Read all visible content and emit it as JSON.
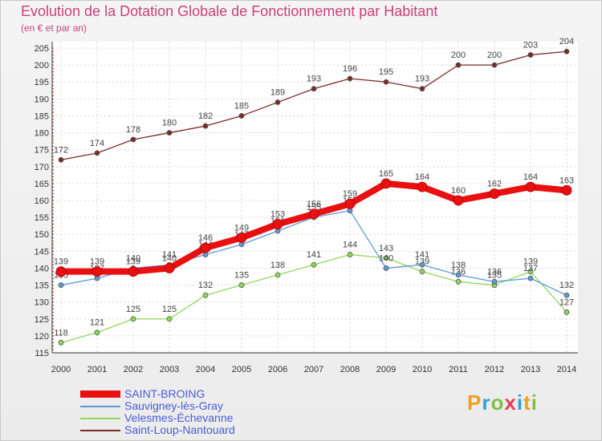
{
  "title": "Evolution de la Dotation Globale de Fonctionnement par Habitant",
  "subtitle": "(en € et par an)",
  "brand": {
    "letters": [
      "P",
      "r",
      "o",
      "x",
      "i",
      "t",
      "i"
    ],
    "colors": [
      "#f0a020",
      "#2ba3dc",
      "#7cc242",
      "#e83b56",
      "#2ba3dc",
      "#f0a020",
      "#7cc242"
    ]
  },
  "chart_data": {
    "type": "line",
    "title": "Evolution de la Dotation Globale de Fonctionnement par Habitant",
    "ylabel": "(en € et par an)",
    "x": [
      "2000",
      "2001",
      "2002",
      "2003",
      "2004",
      "2005",
      "2006",
      "2007",
      "2008",
      "2009",
      "2010",
      "2011",
      "2012",
      "2013",
      "2014"
    ],
    "ylim": [
      115,
      205
    ],
    "yticks": [
      "115",
      "120",
      "125",
      "130",
      "135",
      "140",
      "145",
      "150",
      "155",
      "160",
      "165",
      "170",
      "175",
      "180",
      "185",
      "190",
      "195",
      "200",
      "205"
    ],
    "grid": true,
    "legend": "bottom-left",
    "series": [
      {
        "name": "SAINT-BROING",
        "color": "#e81010",
        "width": "thick",
        "values": [
          139,
          139,
          139,
          140,
          146,
          149,
          153,
          156,
          159,
          165,
          164,
          160,
          162,
          164,
          163
        ],
        "labels": [
          "139",
          "139",
          "139",
          "140",
          "146",
          "149",
          "153",
          "156",
          "159",
          "165",
          "164",
          "160",
          "162",
          "164",
          "163"
        ]
      },
      {
        "name": "Sauvigney-lès-Gray",
        "color": "#5b9bd5",
        "width": "thin",
        "values": [
          135,
          137,
          140,
          141,
          144,
          147,
          151,
          155,
          157,
          140,
          141,
          138,
          136,
          137,
          132
        ],
        "labels": [
          "135",
          "137",
          "140",
          "141",
          "144",
          "147",
          "151",
          "155",
          "157",
          "140",
          "141",
          "138",
          "136",
          "137",
          "132"
        ]
      },
      {
        "name": "Velesmes-Échevanne",
        "color": "#8fd85a",
        "width": "thin",
        "values": [
          118,
          121,
          125,
          125,
          132,
          135,
          138,
          141,
          144,
          143,
          139,
          136,
          135,
          139,
          127
        ],
        "labels": [
          "118",
          "121",
          "125",
          "125",
          "132",
          "135",
          "138",
          "141",
          "144",
          "143",
          "139",
          "136",
          "135",
          "139",
          "127"
        ]
      },
      {
        "name": "Saint-Loup-Nantouard",
        "color": "#7a2a2a",
        "width": "thin",
        "values": [
          172,
          174,
          178,
          180,
          182,
          185,
          189,
          193,
          196,
          195,
          193,
          200,
          200,
          203,
          204
        ],
        "labels": [
          "172",
          "174",
          "178",
          "180",
          "182",
          "185",
          "189",
          "193",
          "196",
          "195",
          "193",
          "200",
          "200",
          "203",
          "204"
        ]
      }
    ]
  }
}
